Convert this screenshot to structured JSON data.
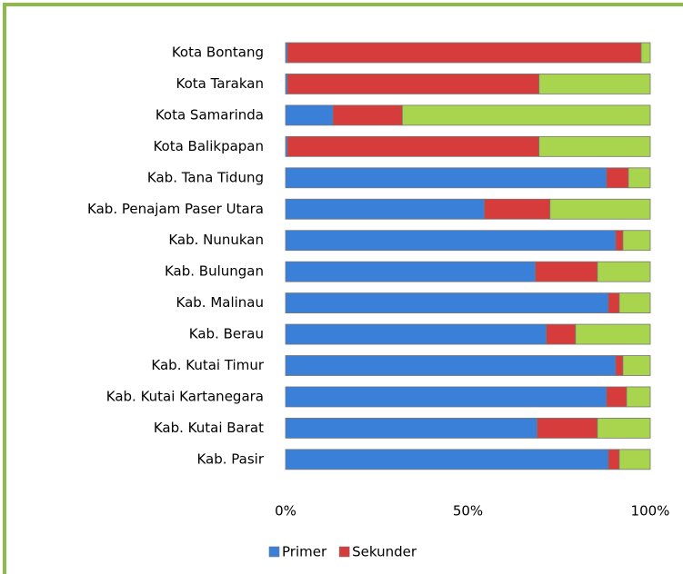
{
  "chart_data": {
    "type": "stacked-barh",
    "categories": [
      "Kota Bontang",
      "Kota Tarakan",
      "Kota Samarinda",
      "Kota Balikpapan",
      "Kab. Tana Tidung",
      "Kab. Penajam Paser Utara",
      "Kab. Nunukan",
      "Kab. Bulungan",
      "Kab. Malinau",
      "Kab. Berau",
      "Kab. Kutai Timur",
      "Kab. Kutai Kartanegara",
      "Kab. Kutai Barat",
      "Kab. Pasir"
    ],
    "series": [
      {
        "name": "Primer",
        "color": "#3a7fd8",
        "values": [
          0.5,
          0.5,
          13,
          0.5,
          88,
          54.5,
          90.5,
          68.5,
          88.5,
          71.5,
          90.5,
          88,
          69,
          88.5
        ]
      },
      {
        "name": "Sekunder",
        "color": "#d63c3c",
        "values": [
          97,
          69,
          19,
          69,
          6,
          18,
          2,
          17,
          3,
          8,
          2,
          5.5,
          16.5,
          3
        ]
      },
      {
        "color": "#a8d44e",
        "values": [
          2.5,
          30.5,
          68,
          30.5,
          6,
          27.5,
          7.5,
          14.5,
          8.5,
          20.5,
          7.5,
          6.5,
          14.5,
          8.5
        ]
      }
    ],
    "xlim": [
      0,
      100
    ],
    "xticks": [
      {
        "value": 0,
        "label": "0%"
      },
      {
        "value": 50,
        "label": "50%"
      },
      {
        "value": 100,
        "label": "100%"
      }
    ]
  }
}
